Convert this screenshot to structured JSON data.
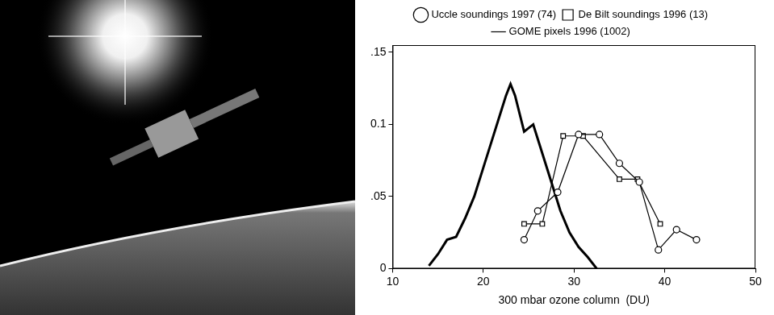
{
  "chart_data": {
    "type": "line",
    "x_label": "300 mbar ozone column  (DU)",
    "xlim": [
      10,
      50
    ],
    "xticks": [
      10,
      20,
      30,
      40,
      50
    ],
    "ylim": [
      0,
      0.155
    ],
    "yticks": [
      0,
      {
        "value": 0.05,
        "label": ".05"
      },
      0.1,
      {
        "value": 0.15,
        "label": ".15"
      }
    ],
    "grid": false,
    "legend": "top",
    "series": [
      {
        "name": "Uccle soundings 1997 (74)",
        "color": "#000000",
        "marker": "circle",
        "line_style": "solid",
        "x": [
          24.5,
          26,
          28.2,
          30.5,
          32.8,
          35,
          37.2,
          39.3,
          41.3,
          43.5
        ],
        "values": [
          0.02,
          0.04,
          0.053,
          0.093,
          0.093,
          0.073,
          0.06,
          0.013,
          0.027,
          0.02
        ]
      },
      {
        "name": "De Bilt soundings 1996 (13)",
        "color": "#000000",
        "marker": "square",
        "line_style": "solid",
        "x": [
          24.5,
          26.5,
          28.8,
          31,
          35,
          37,
          39.5
        ],
        "values": [
          0.031,
          0.031,
          0.092,
          0.092,
          0.062,
          0.062,
          0.031
        ]
      },
      {
        "name": "GOME pixels 1996 (1002)",
        "color": "#000000",
        "marker": "none",
        "line_style": "solid",
        "x": [
          14,
          15,
          16,
          17,
          18,
          19,
          20,
          21,
          22,
          22.5,
          23,
          23.5,
          24.5,
          25.5,
          26.5,
          27.5,
          28.5,
          29.5,
          30.5,
          31.5,
          32.5
        ],
        "values": [
          0.002,
          0.01,
          0.02,
          0.022,
          0.035,
          0.05,
          0.07,
          0.09,
          0.11,
          0.12,
          0.128,
          0.12,
          0.095,
          0.1,
          0.08,
          0.06,
          0.04,
          0.025,
          0.015,
          0.008,
          0.0
        ]
      }
    ]
  }
}
